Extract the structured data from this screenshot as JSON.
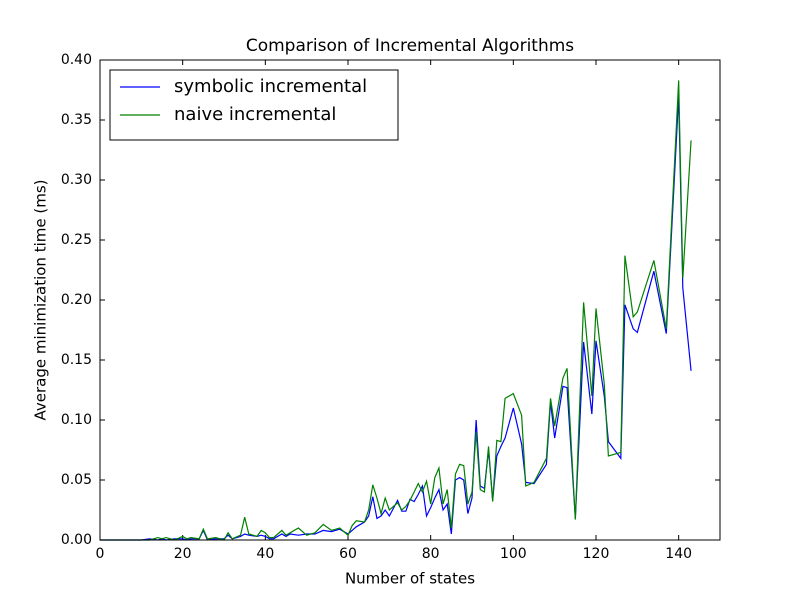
{
  "chart_data": {
    "type": "line",
    "title": "Comparison of Incremental Algorithms",
    "xlabel": "Number of states",
    "ylabel": "Average minimization time (ms)",
    "x": [
      0,
      2,
      4,
      6,
      8,
      10,
      12,
      14,
      15,
      16,
      18,
      20,
      21,
      22,
      24,
      25,
      26,
      28,
      30,
      31,
      32,
      34,
      35,
      36,
      38,
      39,
      40,
      41,
      42,
      44,
      45,
      46,
      48,
      50,
      52,
      54,
      56,
      58,
      60,
      61,
      62,
      64,
      65,
      66,
      67,
      68,
      69,
      70,
      72,
      73,
      74,
      75,
      76,
      77,
      78,
      79,
      80,
      81,
      82,
      83,
      84,
      85,
      86,
      87,
      88,
      89,
      90,
      91,
      92,
      93,
      94,
      95,
      96,
      97,
      98,
      100,
      102,
      103,
      105,
      108,
      109,
      110,
      112,
      113,
      115,
      117,
      119,
      120,
      122,
      123,
      126,
      127,
      129,
      130,
      134,
      137,
      140,
      141,
      143
    ],
    "series": [
      {
        "name": "symbolic incremental",
        "color": "#0000ff",
        "values": [
          0,
          0,
          0,
          0,
          0,
          0,
          0.001,
          0,
          0.001,
          0,
          0.001,
          0.001,
          0,
          0.001,
          0.001,
          0.008,
          0,
          0.001,
          0.001,
          0.004,
          0.001,
          0.003,
          0.005,
          0.004,
          0.003,
          0.004,
          0.003,
          0.001,
          0.001,
          0.005,
          0.003,
          0.005,
          0.004,
          0.005,
          0.005,
          0.008,
          0.007,
          0.009,
          0.005,
          0.008,
          0.011,
          0.015,
          0.02,
          0.036,
          0.018,
          0.02,
          0.025,
          0.02,
          0.033,
          0.024,
          0.024,
          0.034,
          0.032,
          0.038,
          0.045,
          0.02,
          0.027,
          0.035,
          0.042,
          0.025,
          0.03,
          0.005,
          0.05,
          0.052,
          0.05,
          0.022,
          0.035,
          0.1,
          0.045,
          0.043,
          0.075,
          0.033,
          0.07,
          0.078,
          0.085,
          0.11,
          0.08,
          0.048,
          0.047,
          0.063,
          0.115,
          0.085,
          0.128,
          0.127,
          0.018,
          0.165,
          0.105,
          0.166,
          0.12,
          0.082,
          0.068,
          0.196,
          0.176,
          0.173,
          0.224,
          0.172,
          0.37,
          0.21,
          0.141
        ]
      },
      {
        "name": "naive incremental",
        "color": "#008000",
        "values": [
          0,
          0,
          0,
          0,
          0,
          0,
          0,
          0.002,
          0.001,
          0.002,
          0,
          0.003,
          0.001,
          0.002,
          0.001,
          0.009,
          0.001,
          0.002,
          0,
          0.006,
          0.001,
          0.004,
          0.019,
          0.005,
          0.003,
          0.008,
          0.006,
          0.002,
          0.002,
          0.008,
          0.004,
          0.006,
          0.01,
          0.004,
          0.006,
          0.013,
          0.008,
          0.01,
          0.004,
          0.012,
          0.016,
          0.015,
          0.025,
          0.046,
          0.035,
          0.022,
          0.035,
          0.025,
          0.031,
          0.025,
          0.028,
          0.033,
          0.04,
          0.047,
          0.04,
          0.049,
          0.03,
          0.052,
          0.06,
          0.03,
          0.042,
          0.01,
          0.055,
          0.063,
          0.062,
          0.03,
          0.04,
          0.09,
          0.042,
          0.04,
          0.078,
          0.032,
          0.083,
          0.082,
          0.118,
          0.122,
          0.104,
          0.045,
          0.048,
          0.068,
          0.118,
          0.095,
          0.135,
          0.143,
          0.017,
          0.198,
          0.12,
          0.193,
          0.13,
          0.07,
          0.073,
          0.237,
          0.186,
          0.19,
          0.233,
          0.176,
          0.383,
          0.218,
          0.333
        ]
      }
    ],
    "xlim": [
      0,
      150
    ],
    "xticks": [
      0,
      20,
      40,
      60,
      80,
      100,
      120,
      140
    ],
    "ylim": [
      0,
      0.4
    ],
    "yticks": [
      {
        "value": 0,
        "label": "0.00"
      },
      0.05,
      {
        "value": 0.1,
        "label": "0.10"
      },
      0.15,
      {
        "value": 0.2,
        "label": "0.20"
      },
      0.25,
      {
        "value": 0.3,
        "label": "0.30"
      },
      0.35,
      {
        "value": 0.4,
        "label": "0.40"
      }
    ],
    "legend": "upper left",
    "grid": false
  }
}
